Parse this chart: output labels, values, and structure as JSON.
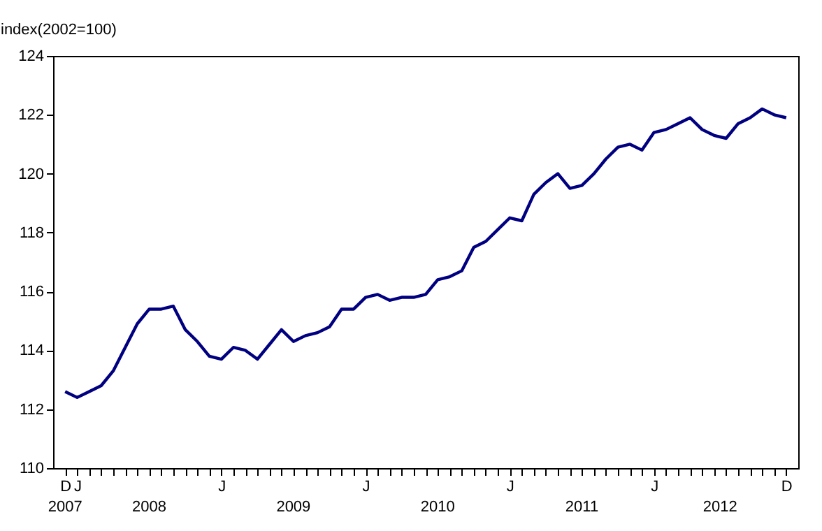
{
  "chart_data": {
    "type": "line",
    "ylabel": "index(2002=100)",
    "categories": [
      "D",
      "J",
      null,
      null,
      null,
      null,
      null,
      null,
      null,
      null,
      null,
      null,
      null,
      "J",
      null,
      null,
      null,
      null,
      null,
      null,
      null,
      null,
      null,
      null,
      null,
      "J",
      null,
      null,
      null,
      null,
      null,
      null,
      null,
      null,
      null,
      null,
      null,
      "J",
      null,
      null,
      null,
      null,
      null,
      null,
      null,
      null,
      null,
      null,
      null,
      "J",
      null,
      null,
      null,
      null,
      null,
      null,
      null,
      null,
      null,
      null,
      "D"
    ],
    "series": [
      {
        "color": "#000080",
        "values": [
          112.6,
          112.4,
          112.6,
          112.8,
          113.3,
          114.1,
          114.9,
          115.4,
          115.4,
          115.5,
          114.7,
          114.3,
          113.8,
          113.7,
          114.1,
          114.0,
          113.7,
          114.2,
          114.7,
          114.3,
          114.5,
          114.6,
          114.8,
          115.4,
          115.4,
          115.8,
          115.9,
          115.7,
          115.8,
          115.8,
          115.9,
          116.4,
          116.5,
          116.7,
          117.5,
          117.7,
          118.1,
          118.5,
          118.4,
          119.3,
          119.7,
          120.0,
          119.5,
          119.6,
          120.0,
          120.5,
          120.9,
          121.0,
          120.8,
          121.4,
          121.5,
          121.7,
          121.9,
          121.5,
          121.3,
          121.2,
          121.7,
          121.9,
          122.2,
          122.0,
          121.9
        ]
      }
    ],
    "marker": "none",
    "line_style": "solid",
    "grid": false,
    "legend": false,
    "annotations": [
      "2007",
      "2008",
      "2009",
      "2010",
      "2011",
      "2012"
    ],
    "ylim": [
      110,
      124
    ],
    "yticks": [
      110,
      112,
      114,
      116,
      118,
      120,
      122,
      124
    ]
  }
}
